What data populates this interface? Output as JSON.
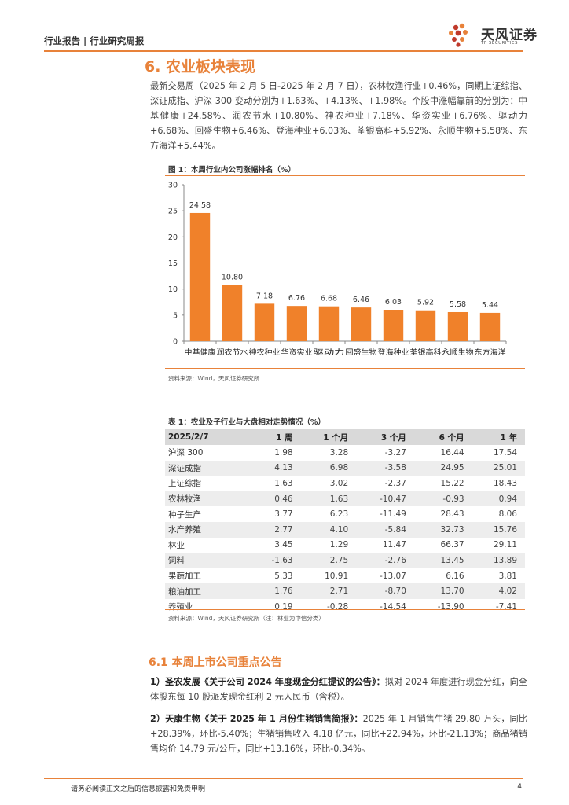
{
  "header": {
    "breadcrumb": "行业报告 | 行业研究周报",
    "logo_cn": "天风证券",
    "logo_en": "TF SECURITIES",
    "accent": "#e8823a"
  },
  "section": {
    "title": "6. 农业板块表现",
    "paragraph": "最新交易周（2025 年 2 月 5 日-2025 年 2 月 7 日），农林牧渔行业+0.46%，同期上证综指、深证成指、沪深 300 变动分别为+1.63%、+4.13%、+1.98%。个股中涨幅靠前的分别为：中基健康+24.58%、润农节水+10.80%、神农种业+7.18%、华资实业+6.76%、驱动力+6.68%、回盛生物+6.46%、登海种业+6.03%、荃银高科+5.92%、永顺生物+5.58%、东方海洋+5.44%。"
  },
  "figure": {
    "title": "图 1：本周行业内公司涨幅排名（%）",
    "source": "资料来源：Wind，天风证券研究所"
  },
  "chart_data": {
    "type": "bar",
    "title": "本周行业内公司涨幅排名（%）",
    "categories": [
      "中基健康",
      "润农节水",
      "神农种业",
      "华资实业",
      "驱动力",
      "回盛生物",
      "登海种业",
      "荃银高科",
      "永顺生物",
      "东方海洋"
    ],
    "values": [
      24.58,
      10.8,
      7.18,
      6.76,
      6.68,
      6.46,
      6.03,
      5.92,
      5.58,
      5.44
    ],
    "value_labels": [
      "24.58",
      "10.80",
      "7.18",
      "6.76",
      "6.68",
      "6.46",
      "6.03",
      "5.92",
      "5.58",
      "5.44"
    ],
    "yticks": [
      "0",
      "5",
      "10",
      "15",
      "20",
      "25",
      "30"
    ],
    "ylim": [
      0,
      30
    ],
    "bar_color": "#f0812a",
    "xlabel": "",
    "ylabel": ""
  },
  "table": {
    "title": "表 1：农业及子行业与大盘相对走势情况（%）",
    "headers": [
      "2025/2/7",
      "1 周",
      "1 个月",
      "3 个月",
      "6 个月",
      "1 年"
    ],
    "rows": [
      [
        "沪深 300",
        "1.98",
        "3.28",
        "-3.27",
        "16.44",
        "17.54"
      ],
      [
        "深证成指",
        "4.13",
        "6.98",
        "-3.58",
        "24.95",
        "25.01"
      ],
      [
        "上证综指",
        "1.63",
        "3.02",
        "-2.37",
        "15.22",
        "18.43"
      ],
      [
        "农林牧渔",
        "0.46",
        "1.63",
        "-10.47",
        "-0.93",
        "0.94"
      ],
      [
        "种子生产",
        "3.77",
        "6.23",
        "-11.49",
        "28.43",
        "8.06"
      ],
      [
        "水产养殖",
        "2.77",
        "4.10",
        "-5.84",
        "32.73",
        "15.76"
      ],
      [
        "林业",
        "3.45",
        "1.29",
        "11.47",
        "66.37",
        "29.11"
      ],
      [
        "饲料",
        "-1.63",
        "2.75",
        "-2.76",
        "13.45",
        "13.89"
      ],
      [
        "果蔬加工",
        "5.33",
        "10.91",
        "-13.07",
        "6.16",
        "3.81"
      ],
      [
        "粮油加工",
        "1.76",
        "2.71",
        "-8.70",
        "13.70",
        "4.02"
      ],
      [
        "养殖业",
        "0.19",
        "-0.28",
        "-14.54",
        "-13.90",
        "-7.41"
      ]
    ],
    "source": "资料来源：Wind，天风证券研究所（注：林业为中信分类）"
  },
  "announcements": {
    "title": "6.1 本周上市公司重点公告",
    "items": [
      {
        "head": "1）圣农发展《关于公司 2024 年度现金分红提议的公告》：",
        "body": "拟对 2024 年度进行现金分红，向全体股东每 10 股派发现金红利 2 元人民币（含税）。"
      },
      {
        "head": "2）天康生物《关于 2025 年 1 月份生猪销售简报》：",
        "body": "2025 年 1 月销售生猪 29.80 万头，同比+28.39%，环比-5.40%；生猪销售收入 4.18 亿元，同比+22.94%，环比-21.13%；商品猪销售均价 14.79 元/公斤，同比+13.16%，环比-0.34%。"
      }
    ]
  },
  "footer": {
    "disclaimer": "请务必阅读正文之后的信息披露和免责申明",
    "page": "4"
  }
}
